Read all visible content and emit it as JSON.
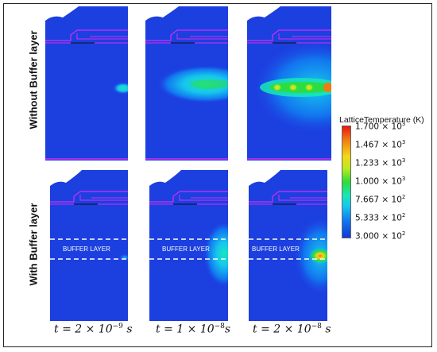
{
  "rows": [
    {
      "label": "Without Buffer layer"
    },
    {
      "label": "With Buffer layer"
    }
  ],
  "panel_text": {
    "buffer_layer": "BUFFER LAYER"
  },
  "legend": {
    "title": "LatticeTemperature (K)",
    "ticks": [
      {
        "mantissa": "1.700",
        "times": "× 10",
        "exp": "3"
      },
      {
        "mantissa": "1.467",
        "times": "× 10",
        "exp": "3"
      },
      {
        "mantissa": "1.233",
        "times": "× 10",
        "exp": "3"
      },
      {
        "mantissa": "1.000",
        "times": "× 10",
        "exp": "3"
      },
      {
        "mantissa": "7.667",
        "times": "× 10",
        "exp": "2"
      },
      {
        "mantissa": "5.333",
        "times": "× 10",
        "exp": "2"
      },
      {
        "mantissa": "3.000",
        "times": "× 10",
        "exp": "2"
      }
    ],
    "colors": [
      "#e8160f",
      "#f27a12",
      "#f5d71a",
      "#b9ea1e",
      "#2fdc37",
      "#18e7b8",
      "#16c6ee",
      "#1276ef",
      "#0f3ad6"
    ]
  },
  "captions": [
    {
      "lhs": "t = 2 × 10",
      "exp": "−9",
      "unit": " s"
    },
    {
      "lhs": "t = 1 × 10",
      "exp": "−8",
      "unit": "s"
    },
    {
      "lhs": "t = 2 × 10",
      "exp": "−8",
      "unit": " s"
    }
  ],
  "colors": {
    "background": "#1c3fe0",
    "electrode": "#d62cf0"
  }
}
